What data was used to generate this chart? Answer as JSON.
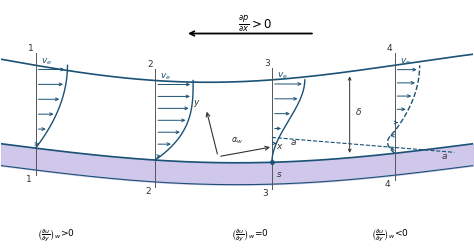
{
  "bg_color": "#ffffff",
  "wall_color": "#c8bfe8",
  "dark_blue": "#1a5276",
  "text_color": "#000000",
  "gray": "#444444",
  "eq1_text": "$\\left(\\frac{\\partial u}{\\partial y}\\right)_w\\!>\\!0$",
  "eq2_text": "$\\left(\\frac{\\partial u}{\\partial y}\\right)_w\\!=\\!0$",
  "eq3_text": "$\\left(\\frac{\\partial u}{\\partial y}\\right)_w\\!<\\!0$",
  "pressure_text": "$\\frac{\\partial p}{\\partial x} > 0$"
}
